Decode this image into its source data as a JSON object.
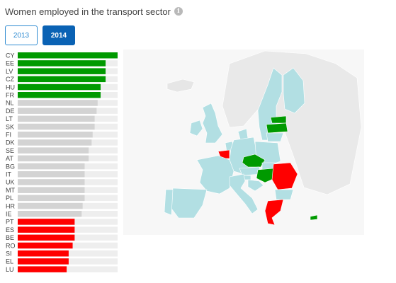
{
  "header": {
    "title": "Women employed in the transport sector",
    "info_icon": "info-icon"
  },
  "tabs": [
    {
      "label": "2013",
      "selected": false
    },
    {
      "label": "2014",
      "selected": true
    }
  ],
  "colors": {
    "high": "#009a00",
    "mid": "#d3d3d3",
    "low": "#ff0000",
    "track": "#eeeeee",
    "map_base": "#b2dfe3",
    "selected_tab": "#0a62b4"
  },
  "chart_data": {
    "type": "bar",
    "orientation": "horizontal",
    "title": "Women employed in the transport sector",
    "categories": [
      "CY",
      "EE",
      "LV",
      "CZ",
      "HU",
      "FR",
      "NL",
      "DE",
      "LT",
      "SK",
      "FI",
      "DK",
      "SE",
      "AT",
      "BG",
      "IT",
      "UK",
      "MT",
      "PL",
      "HR",
      "IE",
      "PT",
      "ES",
      "BE",
      "RO",
      "SI",
      "EL",
      "LU"
    ],
    "values": [
      100,
      88,
      88,
      88,
      83,
      83,
      80,
      79,
      77,
      77,
      75,
      74,
      71,
      71,
      67,
      67,
      67,
      67,
      67,
      65,
      64,
      57,
      57,
      57,
      55,
      51,
      51,
      49
    ],
    "groups": [
      "high",
      "high",
      "high",
      "high",
      "high",
      "high",
      "mid",
      "mid",
      "mid",
      "mid",
      "mid",
      "mid",
      "mid",
      "mid",
      "mid",
      "mid",
      "mid",
      "mid",
      "mid",
      "mid",
      "mid",
      "low",
      "low",
      "low",
      "low",
      "low",
      "low",
      "low"
    ],
    "xlim": [
      0,
      100
    ],
    "grid": false,
    "legend": "none"
  },
  "map": {
    "highlighted": [
      {
        "country": "LV",
        "group": "high"
      },
      {
        "country": "EE",
        "group": "high"
      },
      {
        "country": "CZ",
        "group": "high"
      },
      {
        "country": "HU",
        "group": "high"
      },
      {
        "country": "CY",
        "group": "high"
      },
      {
        "country": "BE",
        "group": "low"
      },
      {
        "country": "RO",
        "group": "low"
      },
      {
        "country": "EL",
        "group": "low"
      }
    ]
  }
}
